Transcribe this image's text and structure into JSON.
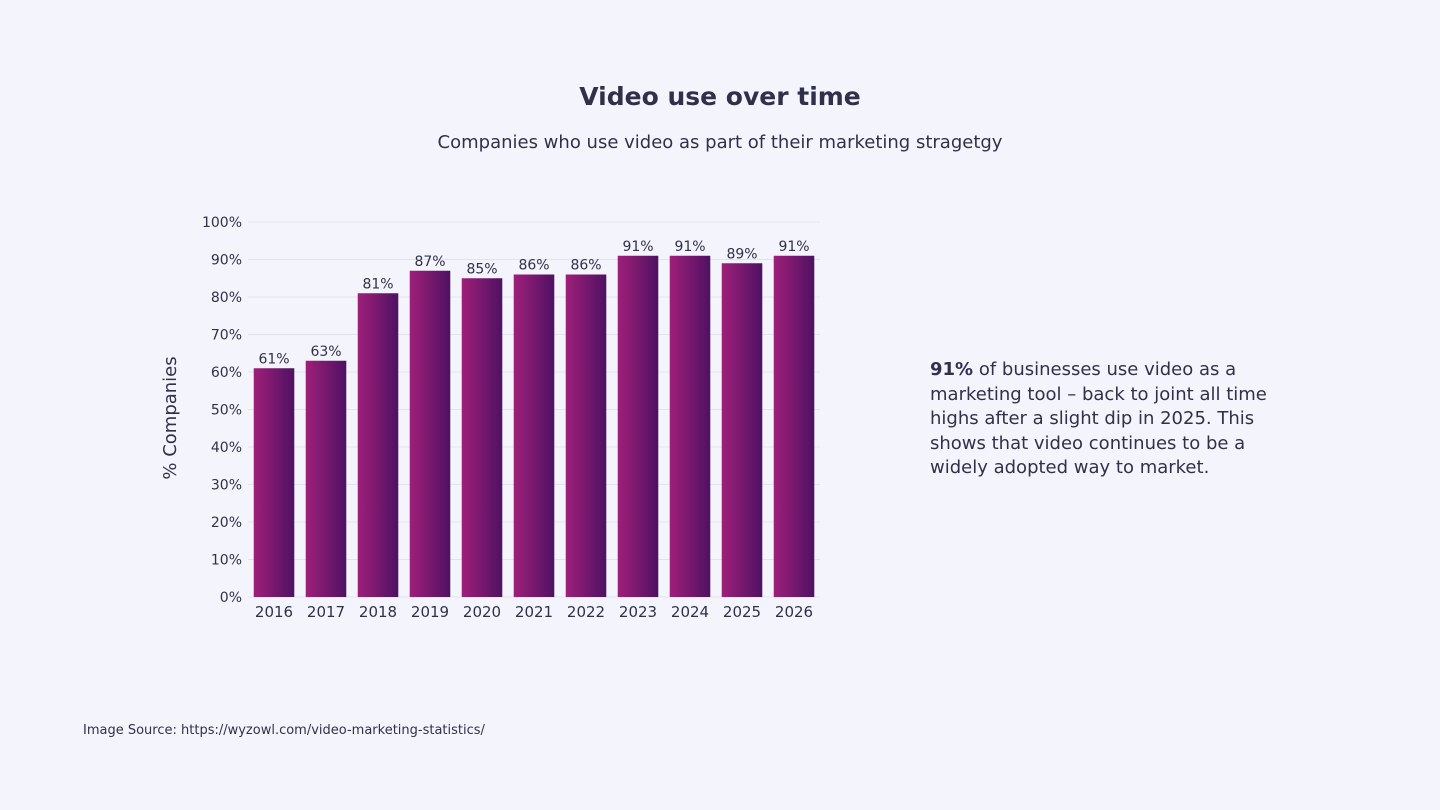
{
  "header": {
    "title": "Video use over time",
    "subtitle": "Companies who use video as part of their marketing stragetgy"
  },
  "insight": {
    "highlight": "91%",
    "text": " of businesses use video as a marketing tool – back to joint all time highs after a slight dip in 2025. This shows that video continues to be a widely adopted way to market."
  },
  "footer": {
    "source": "Image Source: https://wyzowl.com/video-marketing-statistics/"
  },
  "colors": {
    "bar_light": "#9e2078",
    "bar_dark": "#4f1163",
    "grid": "#e2e3ee",
    "text": "#30304a"
  },
  "chart_data": {
    "type": "bar",
    "title": "",
    "xlabel": "",
    "ylabel": "% Companies",
    "categories": [
      "2016",
      "2017",
      "2018",
      "2019",
      "2020",
      "2021",
      "2022",
      "2023",
      "2024",
      "2025",
      "2026"
    ],
    "values": [
      61,
      63,
      81,
      87,
      85,
      86,
      86,
      91,
      91,
      89,
      91
    ],
    "data_labels": [
      "61%",
      "63%",
      "81%",
      "87%",
      "85%",
      "86%",
      "86%",
      "91%",
      "91%",
      "89%",
      "91%"
    ],
    "ylim": [
      0,
      100
    ],
    "yticks": [
      0,
      10,
      20,
      30,
      40,
      50,
      60,
      70,
      80,
      90,
      100
    ],
    "ytick_labels": [
      "0%",
      "10%",
      "20%",
      "30%",
      "40%",
      "50%",
      "60%",
      "70%",
      "80%",
      "90%",
      "100%"
    ],
    "grid": true,
    "legend": "none"
  }
}
